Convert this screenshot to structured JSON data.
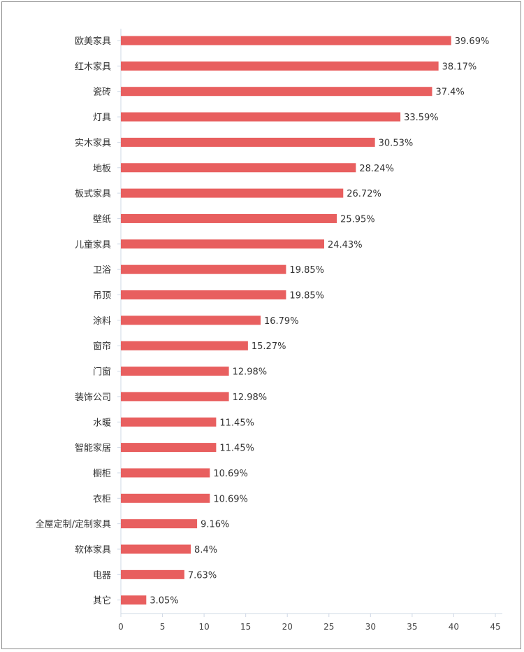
{
  "chart_data": {
    "type": "bar",
    "orientation": "horizontal",
    "categories": [
      "欧美家具",
      "红木家具",
      "瓷砖",
      "灯具",
      "实木家具",
      "地板",
      "板式家具",
      "壁纸",
      "儿童家具",
      "卫浴",
      "吊顶",
      "涂料",
      "窗帘",
      "门窗",
      "装饰公司",
      "水暖",
      "智能家居",
      "橱柜",
      "衣柜",
      "全屋定制/定制家具",
      "软体家具",
      "电器",
      "其它"
    ],
    "values": [
      39.69,
      38.17,
      37.4,
      33.59,
      30.53,
      28.24,
      26.72,
      25.95,
      24.43,
      19.85,
      19.85,
      16.79,
      15.27,
      12.98,
      12.98,
      11.45,
      11.45,
      10.69,
      10.69,
      9.16,
      8.4,
      7.63,
      3.05
    ],
    "value_labels": [
      "39.69%",
      "38.17%",
      "37.4%",
      "33.59%",
      "30.53%",
      "28.24%",
      "26.72%",
      "25.95%",
      "24.43%",
      "19.85%",
      "19.85%",
      "16.79%",
      "15.27%",
      "12.98%",
      "12.98%",
      "11.45%",
      "11.45%",
      "10.69%",
      "10.69%",
      "9.16%",
      "8.4%",
      "7.63%",
      "3.05%"
    ],
    "x_ticks": [
      "0",
      "5",
      "10",
      "15",
      "20",
      "25",
      "30",
      "35",
      "40",
      "45"
    ],
    "xlim": [
      0,
      45
    ],
    "title": "",
    "xlabel": "",
    "ylabel": "",
    "grid": false,
    "bar_color": "#e85f5f",
    "axis_color": "#cfd8e6"
  }
}
